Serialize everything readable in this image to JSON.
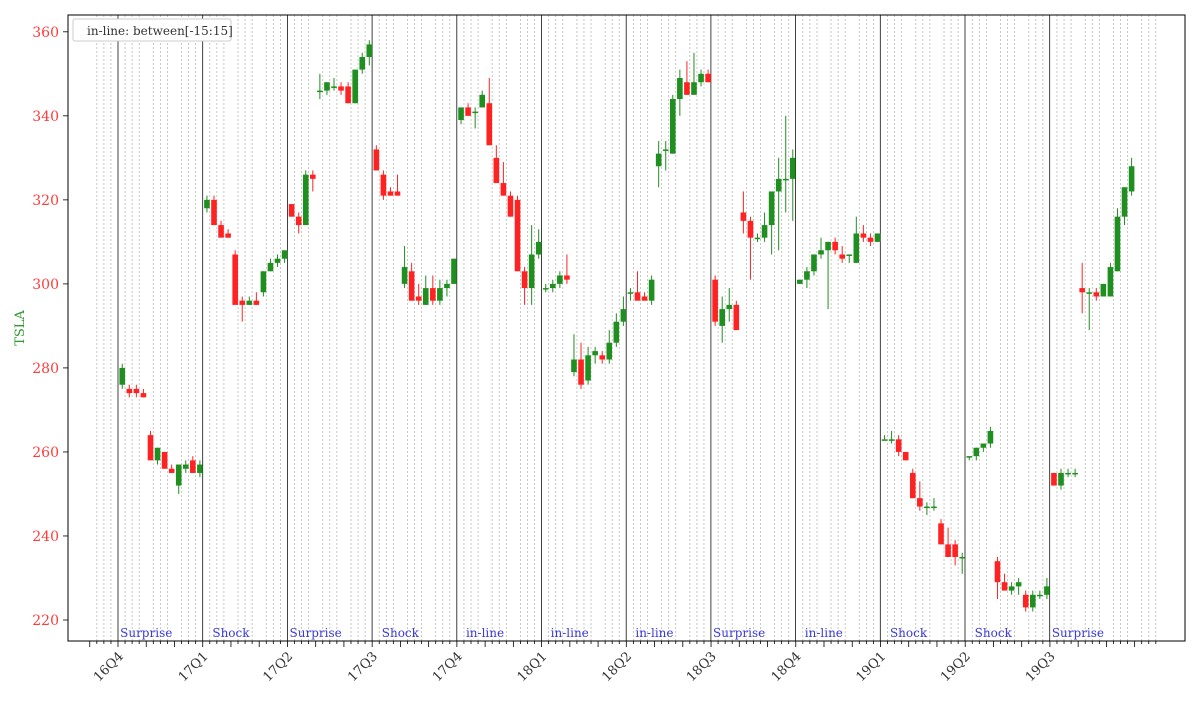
{
  "chart_data": {
    "type": "candlestick",
    "ylabel": "TSLA",
    "legend": {
      "text": "in-line: between[-15:15]",
      "placement": "top-left"
    },
    "ylim": [
      215,
      364
    ],
    "yticks": [
      220,
      240,
      260,
      280,
      300,
      320,
      340,
      360
    ],
    "quarters": [
      "16Q4",
      "17Q1",
      "17Q2",
      "17Q3",
      "17Q4",
      "18Q1",
      "18Q2",
      "18Q3",
      "18Q4",
      "19Q1",
      "19Q2",
      "19Q3"
    ],
    "events": [
      "Surprise",
      "Shock",
      "Surprise",
      "Shock",
      "in-line",
      "in-line",
      "in-line",
      "Surprise",
      "in-line",
      "Shock",
      "Shock",
      "Surprise"
    ],
    "ohlc": [
      [
        [
          276,
          281,
          275,
          280
        ],
        [
          275,
          276,
          273,
          274
        ],
        [
          275,
          276,
          273,
          274
        ],
        [
          274,
          275,
          273,
          273
        ],
        [
          264,
          265,
          258,
          258
        ],
        [
          258,
          261,
          257,
          261
        ],
        [
          260,
          260,
          256,
          256
        ],
        [
          256,
          257,
          255,
          255
        ],
        [
          252,
          257,
          250,
          257
        ],
        [
          256,
          258,
          255,
          257
        ],
        [
          258,
          259,
          255,
          255
        ],
        [
          255,
          258,
          254,
          257
        ]
      ],
      [
        [
          318,
          321,
          317,
          320
        ],
        [
          320,
          321,
          315,
          314
        ],
        [
          314,
          315,
          312,
          311
        ],
        [
          312,
          313,
          311,
          311
        ],
        [
          307,
          308,
          296,
          295
        ],
        [
          296,
          297,
          291,
          295
        ],
        [
          295,
          297,
          295,
          296
        ],
        [
          296,
          298,
          295,
          295
        ],
        [
          298,
          303,
          297,
          303
        ],
        [
          303,
          306,
          303,
          305
        ],
        [
          305,
          307,
          304,
          306
        ],
        [
          306,
          308,
          305,
          308
        ]
      ],
      [
        [
          319,
          319,
          316,
          316
        ],
        [
          316,
          317,
          312,
          314
        ],
        [
          314,
          327,
          314,
          326
        ],
        [
          326,
          327,
          322,
          325
        ],
        [
          346,
          350,
          344,
          346
        ],
        [
          346,
          348,
          345,
          348
        ],
        [
          347,
          349,
          346,
          347
        ],
        [
          347,
          348,
          345,
          346
        ],
        [
          347,
          348,
          343,
          343
        ],
        [
          343,
          351,
          343,
          351
        ],
        [
          351,
          355,
          350,
          354
        ],
        [
          354,
          358,
          352,
          357
        ]
      ],
      [
        [
          332,
          333,
          327,
          327
        ],
        [
          326,
          327,
          320,
          321
        ],
        [
          322,
          323,
          321,
          321
        ],
        [
          322,
          326,
          321,
          321
        ],
        [
          300,
          309,
          299,
          304
        ],
        [
          303,
          305,
          296,
          296
        ],
        [
          297,
          300,
          295,
          296
        ],
        [
          295,
          302,
          295,
          299
        ],
        [
          299,
          302,
          295,
          296
        ],
        [
          296,
          301,
          295,
          299
        ],
        [
          299,
          301,
          297,
          300
        ],
        [
          300,
          306,
          300,
          306
        ]
      ],
      [
        [
          339,
          342,
          338,
          342
        ],
        [
          342,
          343,
          340,
          340
        ],
        [
          341,
          342,
          337,
          341
        ],
        [
          342,
          346,
          342,
          345
        ],
        [
          343,
          349,
          334,
          333
        ],
        [
          330,
          333,
          324,
          324
        ],
        [
          324,
          329,
          321,
          321
        ],
        [
          321,
          322,
          316,
          316
        ],
        [
          320,
          321,
          303,
          303
        ],
        [
          303,
          304,
          295,
          299
        ],
        [
          299,
          314,
          295,
          307
        ],
        [
          307,
          313,
          306,
          310
        ]
      ],
      [
        [
          299,
          300,
          298,
          299
        ],
        [
          299,
          301,
          298,
          300
        ],
        [
          300,
          303,
          299,
          302
        ],
        [
          302,
          307,
          300,
          301
        ],
        [
          279,
          288,
          278,
          282
        ],
        [
          282,
          286,
          275,
          276
        ],
        [
          277,
          285,
          276,
          283
        ],
        [
          283,
          285,
          281,
          284
        ],
        [
          283,
          284,
          281,
          282
        ],
        [
          282,
          289,
          281,
          286
        ],
        [
          286,
          293,
          285,
          291
        ],
        [
          291,
          297,
          290,
          294
        ]
      ],
      [
        [
          298,
          299,
          296,
          298
        ],
        [
          298,
          303,
          297,
          296
        ],
        [
          297,
          298,
          296,
          296
        ],
        [
          296,
          302,
          295,
          301
        ],
        [
          328,
          334,
          323,
          331
        ],
        [
          332,
          334,
          327,
          332
        ],
        [
          331,
          345,
          331,
          344
        ],
        [
          344,
          351,
          340,
          349
        ],
        [
          348,
          353,
          345,
          345
        ],
        [
          345,
          355,
          345,
          348
        ],
        [
          348,
          351,
          347,
          350
        ],
        [
          350,
          351,
          348,
          348
        ]
      ],
      [
        [
          301,
          302,
          290,
          291
        ],
        [
          290,
          297,
          286,
          294
        ],
        [
          294,
          299,
          291,
          295
        ],
        [
          295,
          296,
          289,
          289
        ],
        [
          317,
          322,
          312,
          315
        ],
        [
          315,
          316,
          301,
          311
        ],
        [
          311,
          312,
          310,
          311
        ],
        [
          311,
          317,
          310,
          314
        ],
        [
          314,
          320,
          307,
          322
        ],
        [
          322,
          330,
          308,
          325
        ],
        [
          325,
          340,
          317,
          325
        ],
        [
          325,
          332,
          315,
          330
        ]
      ],
      [
        [
          300,
          301,
          300,
          301
        ],
        [
          301,
          304,
          299,
          303
        ],
        [
          303,
          307,
          302,
          307
        ],
        [
          307,
          311,
          306,
          308
        ],
        [
          308,
          310,
          294,
          310
        ],
        [
          310,
          311,
          307,
          308
        ],
        [
          307,
          309,
          305,
          306
        ],
        [
          307,
          307,
          305,
          307
        ],
        [
          305,
          316,
          305,
          312
        ],
        [
          312,
          314,
          310,
          311
        ],
        [
          311,
          312,
          309,
          310
        ],
        [
          310,
          312,
          310,
          312
        ]
      ],
      [
        [
          263,
          264,
          263,
          263
        ],
        [
          263,
          265,
          262,
          263
        ],
        [
          263,
          264,
          259,
          260
        ],
        [
          260,
          260,
          258,
          258
        ],
        [
          255,
          256,
          249,
          249
        ],
        [
          249,
          253,
          246,
          247
        ],
        [
          247,
          248,
          245,
          247
        ],
        [
          247,
          249,
          246,
          247
        ],
        [
          243,
          244,
          238,
          238
        ],
        [
          238,
          242,
          235,
          235
        ],
        [
          238,
          239,
          233,
          235
        ],
        [
          235,
          236,
          231,
          235
        ]
      ],
      [
        [
          259,
          259,
          258,
          259
        ],
        [
          259,
          261,
          258,
          261
        ],
        [
          261,
          262,
          260,
          262
        ],
        [
          262,
          266,
          261,
          265
        ],
        [
          234,
          235,
          225,
          229
        ],
        [
          229,
          231,
          227,
          227
        ],
        [
          227,
          229,
          226,
          228
        ],
        [
          228,
          230,
          226,
          229
        ],
        [
          226,
          227,
          222,
          223
        ],
        [
          223,
          227,
          222,
          226
        ],
        [
          226,
          227,
          225,
          226
        ],
        [
          226,
          230,
          225,
          228
        ]
      ],
      [
        [
          255,
          255,
          252,
          252
        ],
        [
          252,
          256,
          251,
          255
        ],
        [
          255,
          256,
          254,
          255
        ],
        [
          255,
          256,
          254,
          255
        ],
        [
          299,
          305,
          293,
          298
        ],
        [
          298,
          299,
          289,
          298
        ],
        [
          298,
          299,
          296,
          297
        ],
        [
          297,
          300,
          297,
          300
        ],
        [
          297,
          305,
          298,
          304
        ],
        [
          303,
          318,
          303,
          316
        ],
        [
          316,
          323,
          314,
          323
        ],
        [
          322,
          330,
          321,
          328
        ]
      ]
    ],
    "grid": "dotted vertical lines",
    "colors": {
      "up": "#1f8f1f",
      "down": "#ff2222",
      "axis_ticks": "#ff3b3b",
      "ylabel": "#2e9a2e",
      "event_label": "#3a3adb"
    }
  }
}
